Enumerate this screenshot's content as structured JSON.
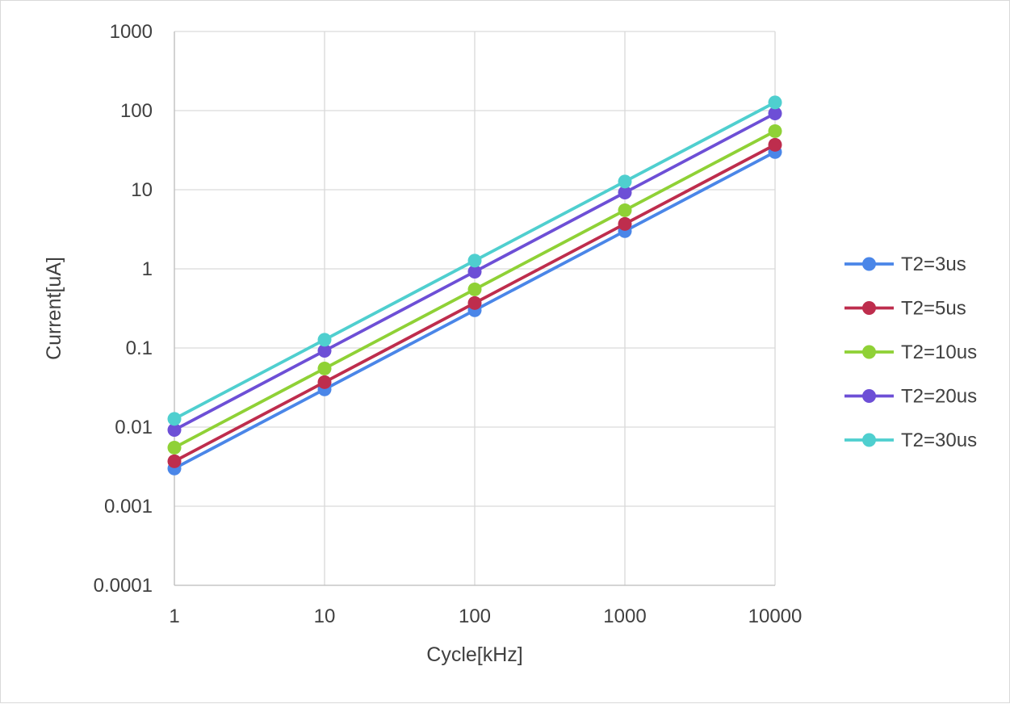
{
  "chart_data": {
    "type": "line",
    "title": "",
    "xlabel": "Cycle[kHz]",
    "ylabel": "Current[uA]",
    "xscale": "log",
    "yscale": "log",
    "xlim": [
      1,
      10000
    ],
    "ylim": [
      0.0001,
      1000
    ],
    "x": [
      1,
      10,
      100,
      1000,
      10000
    ],
    "x_tick_labels": [
      "1",
      "10",
      "100",
      "1000",
      "10000"
    ],
    "y_ticks": [
      0.0001,
      0.001,
      0.01,
      0.1,
      1,
      10,
      100,
      1000
    ],
    "y_tick_labels": [
      "0.0001",
      "0.001",
      "0.01",
      "0.1",
      "1",
      "10",
      "100",
      "1000"
    ],
    "grid": true,
    "legend_position": "right",
    "series": [
      {
        "name": "T2=3us",
        "color": "#4a86e8",
        "values": [
          0.003,
          0.03,
          0.3,
          3,
          30
        ]
      },
      {
        "name": "T2=5us",
        "color": "#be2d4d",
        "values": [
          0.0037,
          0.037,
          0.37,
          3.7,
          37
        ]
      },
      {
        "name": "T2=10us",
        "color": "#8fd136",
        "values": [
          0.0055,
          0.055,
          0.55,
          5.5,
          55
        ]
      },
      {
        "name": "T2=20us",
        "color": "#6d4fd6",
        "values": [
          0.0092,
          0.092,
          0.92,
          9.2,
          92
        ]
      },
      {
        "name": "T2=30us",
        "color": "#4fcfcf",
        "values": [
          0.0127,
          0.127,
          1.27,
          12.7,
          127
        ]
      }
    ]
  }
}
